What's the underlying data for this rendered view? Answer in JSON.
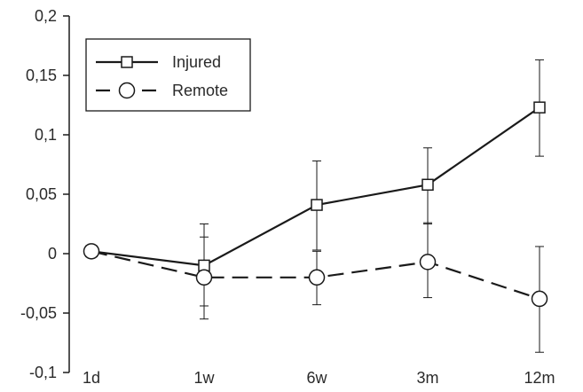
{
  "chart_data": {
    "type": "line",
    "title": "",
    "xlabel": "",
    "ylabel": "",
    "categories": [
      "1d",
      "1w",
      "6w",
      "3m",
      "12m"
    ],
    "ylim": [
      -0.1,
      0.2
    ],
    "yticks": [
      -0.1,
      -0.05,
      0,
      0.05,
      0.1,
      0.15,
      0.2
    ],
    "ytick_labels": [
      "-0,1",
      "-0,05",
      "0",
      "0,05",
      "0,1",
      "0,15",
      "0,2"
    ],
    "grid": false,
    "legend_position": "top-left",
    "series": [
      {
        "name": "Injured",
        "line_style": "solid",
        "marker": "square",
        "values": [
          0.002,
          -0.01,
          0.041,
          0.058,
          0.123
        ],
        "error_low": [
          0.002,
          -0.044,
          0.003,
          0.025,
          0.082
        ],
        "error_high": [
          0.002,
          0.025,
          0.078,
          0.089,
          0.163
        ]
      },
      {
        "name": "Remote",
        "line_style": "dashed",
        "marker": "circle",
        "values": [
          0.002,
          -0.02,
          -0.02,
          -0.007,
          -0.038
        ],
        "error_low": [
          0.002,
          -0.055,
          -0.043,
          -0.037,
          -0.083
        ],
        "error_high": [
          0.002,
          0.014,
          0.002,
          0.026,
          0.006
        ]
      }
    ],
    "colors": {
      "line": "#1a1a1a",
      "text": "#2a2a2a"
    }
  }
}
